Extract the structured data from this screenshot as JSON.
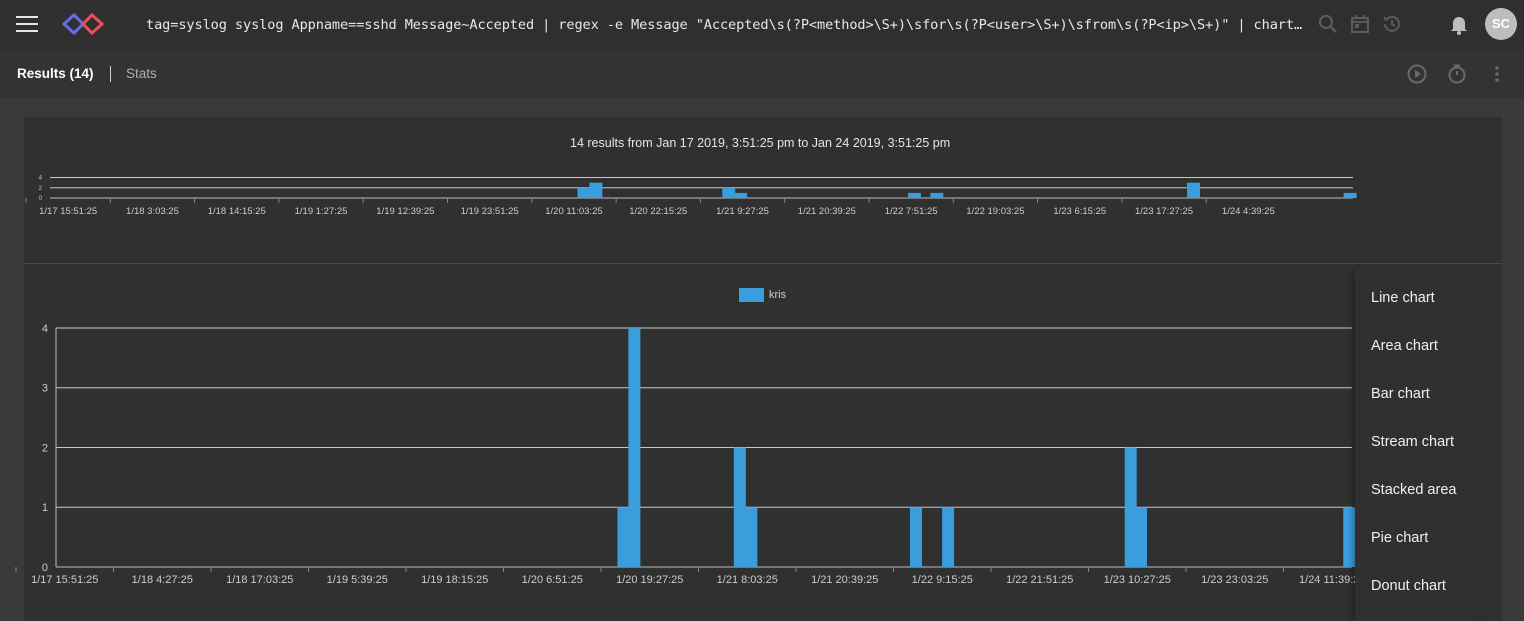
{
  "header": {
    "query": "tag=syslog syslog Appname==sshd Message~Accepted | regex -e Message \"Accepted\\s(?P<method>\\S+)\\sfor\\s(?P<user>\\S+)\\sfrom\\s(?P<ip>\\S+)\" | chart count by user",
    "avatar_initials": "SC",
    "icons": [
      "menu-icon",
      "logo-icon",
      "search-icon",
      "calendar-icon",
      "history-icon",
      "bell-icon"
    ]
  },
  "tabs": {
    "results": "Results (14)",
    "stats": "Stats"
  },
  "overview": {
    "summary": "14 results from Jan 17 2019, 3:51:25 pm to Jan 24 2019, 3:51:25 pm"
  },
  "chart_menu": {
    "items": [
      "Line chart",
      "Area chart",
      "Bar chart",
      "Stream chart",
      "Stacked area",
      "Pie chart",
      "Donut chart"
    ]
  },
  "colors": {
    "bar": "#3a9ddc",
    "background": "#303030"
  },
  "chart_data": [
    {
      "type": "bar",
      "title": "",
      "x_ticks": [
        "1/17 15:51:25",
        "1/18 3:03:25",
        "1/18 14:15:25",
        "1/19 1:27:25",
        "1/19 12:39:25",
        "1/19 23:51:25",
        "1/20 11:03:25",
        "1/20 22:15:25",
        "1/21 9:27:25",
        "1/21 20:39:25",
        "1/22 7:51:25",
        "1/22 19:03:25",
        "1/23 6:15:25",
        "1/23 17:27:25",
        "1/24 4:39:25"
      ],
      "y_ticks": [
        0,
        2,
        4
      ],
      "ylim": [
        0,
        4.3
      ],
      "bars": [
        {
          "x": "1/20 14:30",
          "value": 2
        },
        {
          "x": "1/20 16:00",
          "value": 3
        },
        {
          "x": "1/21 8:50",
          "value": 2
        },
        {
          "x": "1/21 10:20",
          "value": 1
        },
        {
          "x": "1/22 8:20",
          "value": 1
        },
        {
          "x": "1/22 11:10",
          "value": 1
        },
        {
          "x": "1/23 19:40",
          "value": 3
        },
        {
          "x": "1/24 15:30",
          "value": 1
        }
      ],
      "grid": true
    },
    {
      "type": "bar",
      "title": "",
      "legend": [
        "kris"
      ],
      "legend_position": "top-center",
      "x_ticks": [
        "1/17 15:51:25",
        "1/18 4:27:25",
        "1/18 17:03:25",
        "1/19 5:39:25",
        "1/19 18:15:25",
        "1/20 6:51:25",
        "1/20 19:27:25",
        "1/21 8:03:25",
        "1/21 20:39:25",
        "1/22 9:15:25",
        "1/22 21:51:25",
        "1/23 10:27:25",
        "1/23 23:03:25",
        "1/24 11:39:25"
      ],
      "y_ticks": [
        0,
        1,
        2,
        3,
        4
      ],
      "ylim": [
        0,
        4
      ],
      "series": [
        {
          "name": "kris",
          "bars": [
            {
              "x": "1/20 17:25",
              "value": 1
            },
            {
              "x": "1/20 18:50",
              "value": 4
            },
            {
              "x": "1/21 8:30",
              "value": 2
            },
            {
              "x": "1/21 10:00",
              "value": 1
            },
            {
              "x": "1/22 7:20",
              "value": 1
            },
            {
              "x": "1/22 11:30",
              "value": 1
            },
            {
              "x": "1/23 11:10",
              "value": 2
            },
            {
              "x": "1/23 12:30",
              "value": 1
            },
            {
              "x": "1/24 15:30",
              "value": 1
            }
          ]
        }
      ],
      "grid": true
    }
  ]
}
